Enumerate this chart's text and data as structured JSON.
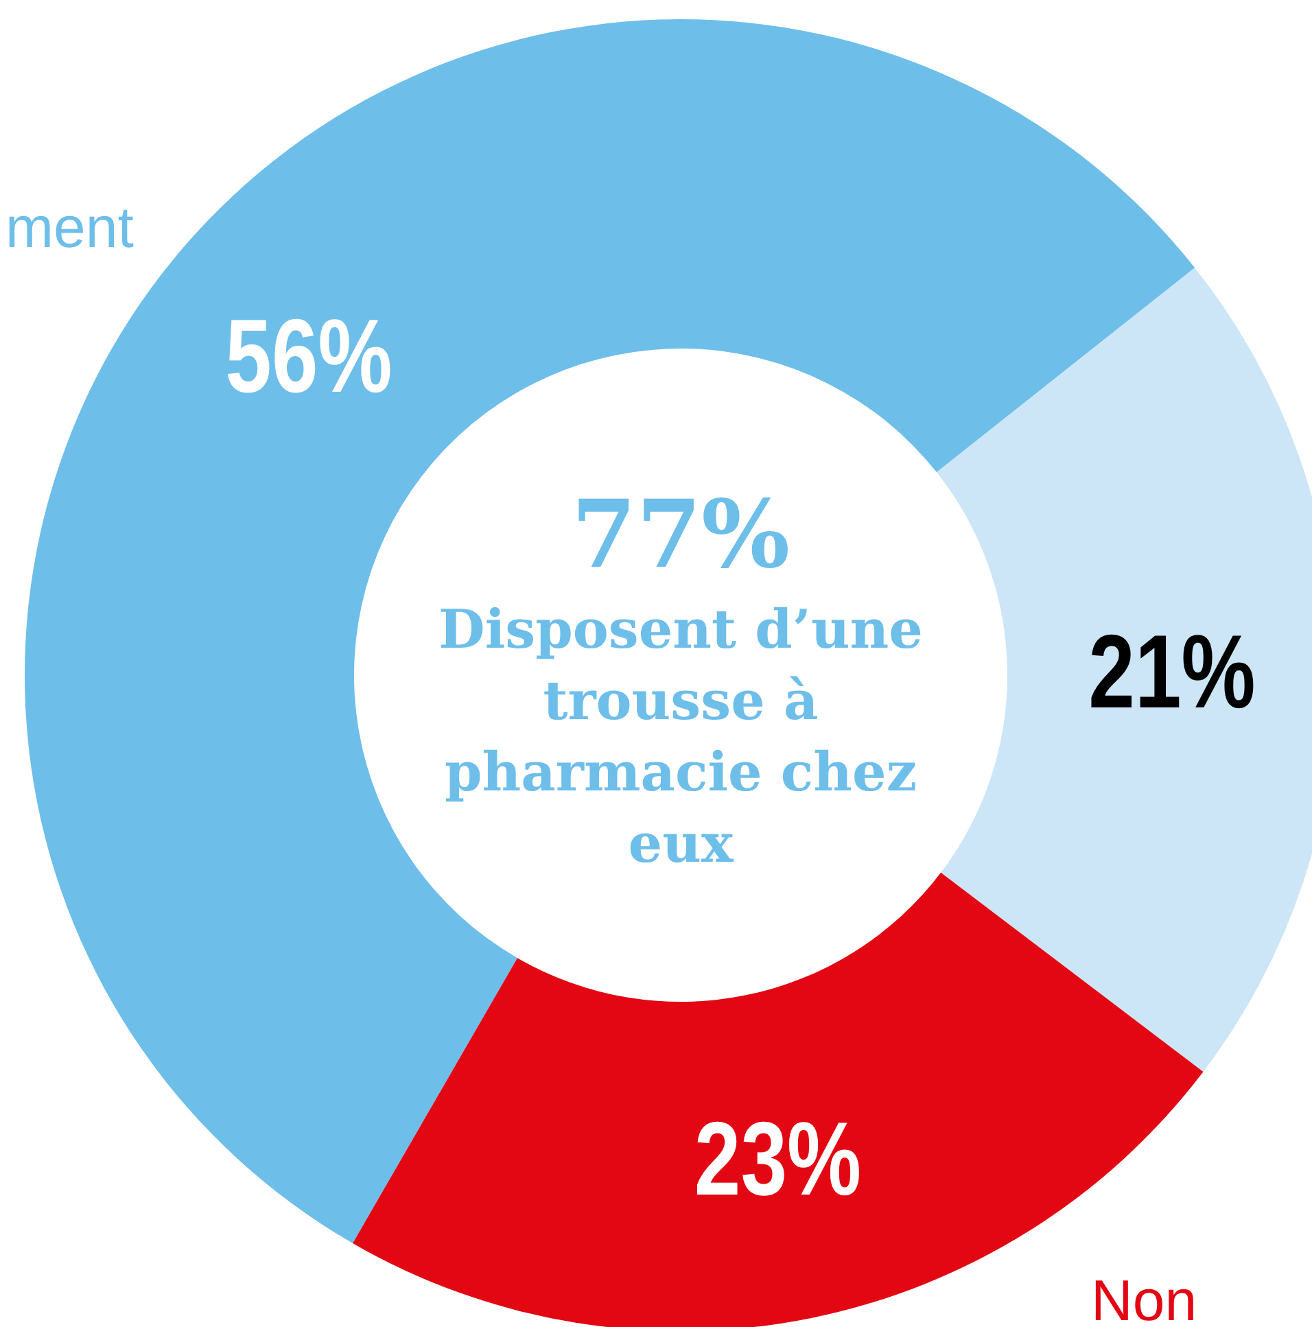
{
  "chart_data": {
    "type": "donut",
    "categories": [
      "ment",
      null,
      "Non"
    ],
    "values": [
      56,
      21,
      23
    ],
    "colors": [
      "#6ebeea",
      "#cce6f7",
      "#e30613"
    ],
    "value_labels": [
      "56%",
      "21%",
      "23%"
    ],
    "annotations": [
      "77%",
      "Disposent d’une trousse à pharmacie chez eux"
    ]
  }
}
